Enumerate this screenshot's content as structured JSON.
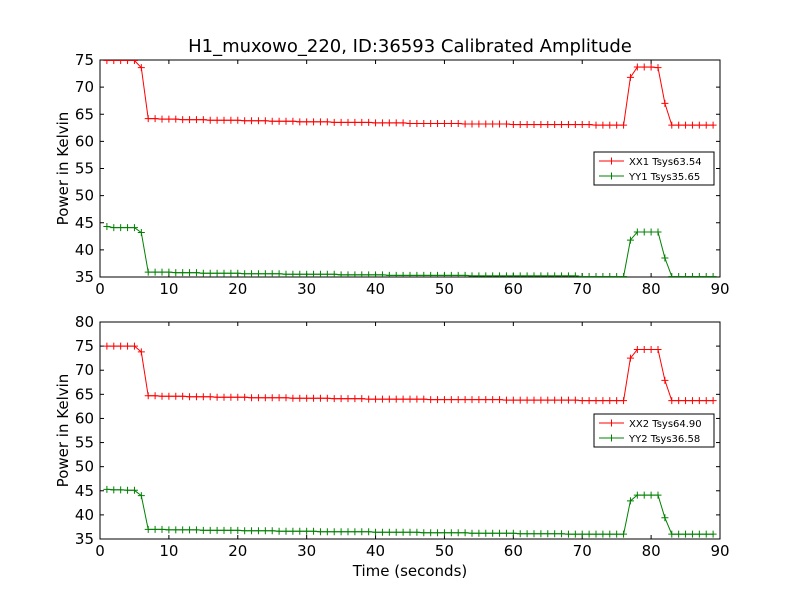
{
  "figure": {
    "title": "H1_muxowo_220, ID:36593 Calibrated Amplitude",
    "xlabel": "Time (seconds)"
  },
  "chart_data": [
    {
      "type": "line",
      "ylabel": "Power in Kelvin",
      "xlim": [
        0,
        90
      ],
      "ylim": [
        35,
        75
      ],
      "xticks": [
        0,
        10,
        20,
        30,
        40,
        50,
        60,
        70,
        80,
        90
      ],
      "yticks": [
        35,
        40,
        45,
        50,
        55,
        60,
        65,
        70,
        75
      ],
      "grid": false,
      "legend_position": "center-right",
      "x": [
        1,
        2,
        3,
        4,
        5,
        6,
        7,
        8,
        9,
        10,
        11,
        12,
        13,
        14,
        15,
        16,
        17,
        18,
        19,
        20,
        21,
        22,
        23,
        24,
        25,
        26,
        27,
        28,
        29,
        30,
        31,
        32,
        33,
        34,
        35,
        36,
        37,
        38,
        39,
        40,
        41,
        42,
        43,
        44,
        45,
        46,
        47,
        48,
        49,
        50,
        51,
        52,
        53,
        54,
        55,
        56,
        57,
        58,
        59,
        60,
        61,
        62,
        63,
        64,
        65,
        66,
        67,
        68,
        69,
        70,
        71,
        72,
        73,
        74,
        75,
        76,
        77,
        78,
        79,
        80,
        81,
        82,
        83,
        84,
        85,
        86,
        87,
        88,
        89
      ],
      "series": [
        {
          "name": "XX1 Tsys63.54",
          "color": "#ff0000",
          "values": [
            74.9,
            74.9,
            74.9,
            74.9,
            74.9,
            73.6,
            64.2,
            64.2,
            64.1,
            64.1,
            64.1,
            64.0,
            64.0,
            64.0,
            64.0,
            63.9,
            63.9,
            63.9,
            63.9,
            63.9,
            63.8,
            63.8,
            63.8,
            63.8,
            63.7,
            63.7,
            63.7,
            63.7,
            63.6,
            63.6,
            63.6,
            63.6,
            63.6,
            63.5,
            63.5,
            63.5,
            63.5,
            63.5,
            63.5,
            63.4,
            63.4,
            63.4,
            63.4,
            63.4,
            63.3,
            63.3,
            63.3,
            63.3,
            63.3,
            63.3,
            63.3,
            63.3,
            63.2,
            63.2,
            63.2,
            63.2,
            63.2,
            63.2,
            63.2,
            63.1,
            63.1,
            63.1,
            63.1,
            63.1,
            63.1,
            63.1,
            63.1,
            63.1,
            63.1,
            63.1,
            63.1,
            63.0,
            63.0,
            63.0,
            63.0,
            63.0,
            71.8,
            73.7,
            73.7,
            73.7,
            73.6,
            67.0,
            63.0,
            63.0,
            63.0,
            63.0,
            63.0,
            63.0,
            63.0
          ]
        },
        {
          "name": "YY1 Tsys35.65",
          "color": "#008000",
          "values": [
            44.3,
            44.1,
            44.1,
            44.1,
            44.1,
            43.2,
            35.9,
            35.9,
            35.9,
            35.9,
            35.8,
            35.8,
            35.8,
            35.8,
            35.7,
            35.7,
            35.7,
            35.7,
            35.7,
            35.7,
            35.6,
            35.6,
            35.6,
            35.6,
            35.6,
            35.6,
            35.5,
            35.5,
            35.5,
            35.5,
            35.5,
            35.5,
            35.5,
            35.5,
            35.4,
            35.4,
            35.4,
            35.4,
            35.4,
            35.4,
            35.4,
            35.3,
            35.3,
            35.3,
            35.3,
            35.3,
            35.3,
            35.3,
            35.3,
            35.3,
            35.3,
            35.3,
            35.3,
            35.2,
            35.2,
            35.2,
            35.2,
            35.2,
            35.2,
            35.2,
            35.2,
            35.2,
            35.2,
            35.2,
            35.2,
            35.2,
            35.2,
            35.2,
            35.2,
            35.1,
            35.1,
            35.1,
            35.1,
            35.1,
            35.1,
            35.1,
            41.8,
            43.3,
            43.3,
            43.3,
            43.3,
            38.5,
            35.1,
            35.1,
            35.1,
            35.1,
            35.1,
            35.1,
            35.1
          ]
        }
      ]
    },
    {
      "type": "line",
      "ylabel": "Power in Kelvin",
      "xlabel": "Time (seconds)",
      "xlim": [
        0,
        90
      ],
      "ylim": [
        35,
        80
      ],
      "xticks": [
        0,
        10,
        20,
        30,
        40,
        50,
        60,
        70,
        80,
        90
      ],
      "yticks": [
        35,
        40,
        45,
        50,
        55,
        60,
        65,
        70,
        75,
        80
      ],
      "grid": false,
      "legend_position": "lower-right",
      "x": [
        1,
        2,
        3,
        4,
        5,
        6,
        7,
        8,
        9,
        10,
        11,
        12,
        13,
        14,
        15,
        16,
        17,
        18,
        19,
        20,
        21,
        22,
        23,
        24,
        25,
        26,
        27,
        28,
        29,
        30,
        31,
        32,
        33,
        34,
        35,
        36,
        37,
        38,
        39,
        40,
        41,
        42,
        43,
        44,
        45,
        46,
        47,
        48,
        49,
        50,
        51,
        52,
        53,
        54,
        55,
        56,
        57,
        58,
        59,
        60,
        61,
        62,
        63,
        64,
        65,
        66,
        67,
        68,
        69,
        70,
        71,
        72,
        73,
        74,
        75,
        76,
        77,
        78,
        79,
        80,
        81,
        82,
        83,
        84,
        85,
        86,
        87,
        88,
        89
      ],
      "series": [
        {
          "name": "XX2 Tsys64.90",
          "color": "#ff0000",
          "values": [
            75.0,
            75.0,
            75.0,
            75.0,
            75.0,
            73.8,
            64.7,
            64.7,
            64.6,
            64.6,
            64.6,
            64.6,
            64.5,
            64.5,
            64.5,
            64.5,
            64.4,
            64.4,
            64.4,
            64.4,
            64.4,
            64.3,
            64.3,
            64.3,
            64.3,
            64.3,
            64.3,
            64.2,
            64.2,
            64.2,
            64.2,
            64.2,
            64.2,
            64.1,
            64.1,
            64.1,
            64.1,
            64.1,
            64.0,
            64.0,
            64.0,
            64.0,
            64.0,
            64.0,
            64.0,
            64.0,
            64.0,
            63.9,
            63.9,
            63.9,
            63.9,
            63.9,
            63.9,
            63.9,
            63.9,
            63.9,
            63.9,
            63.9,
            63.8,
            63.8,
            63.8,
            63.8,
            63.8,
            63.8,
            63.8,
            63.8,
            63.8,
            63.8,
            63.8,
            63.7,
            63.7,
            63.7,
            63.7,
            63.7,
            63.7,
            63.7,
            72.5,
            74.3,
            74.3,
            74.3,
            74.3,
            67.9,
            63.7,
            63.7,
            63.7,
            63.7,
            63.7,
            63.7,
            63.7
          ]
        },
        {
          "name": "YY2 Tsys36.58",
          "color": "#008000",
          "values": [
            45.3,
            45.2,
            45.2,
            45.1,
            45.1,
            44.0,
            37.0,
            37.0,
            37.0,
            36.9,
            36.9,
            36.9,
            36.9,
            36.9,
            36.8,
            36.8,
            36.8,
            36.8,
            36.8,
            36.8,
            36.7,
            36.7,
            36.7,
            36.7,
            36.7,
            36.6,
            36.6,
            36.6,
            36.6,
            36.6,
            36.6,
            36.5,
            36.5,
            36.5,
            36.5,
            36.5,
            36.5,
            36.5,
            36.5,
            36.4,
            36.4,
            36.4,
            36.4,
            36.4,
            36.4,
            36.4,
            36.3,
            36.3,
            36.3,
            36.3,
            36.3,
            36.3,
            36.3,
            36.2,
            36.2,
            36.2,
            36.2,
            36.2,
            36.2,
            36.2,
            36.1,
            36.1,
            36.1,
            36.1,
            36.1,
            36.1,
            36.1,
            36.0,
            36.0,
            36.0,
            36.0,
            36.0,
            36.0,
            36.0,
            36.0,
            36.0,
            42.9,
            44.1,
            44.1,
            44.1,
            44.1,
            39.4,
            36.0,
            36.0,
            36.0,
            36.0,
            36.0,
            36.0,
            36.0
          ]
        }
      ]
    }
  ]
}
